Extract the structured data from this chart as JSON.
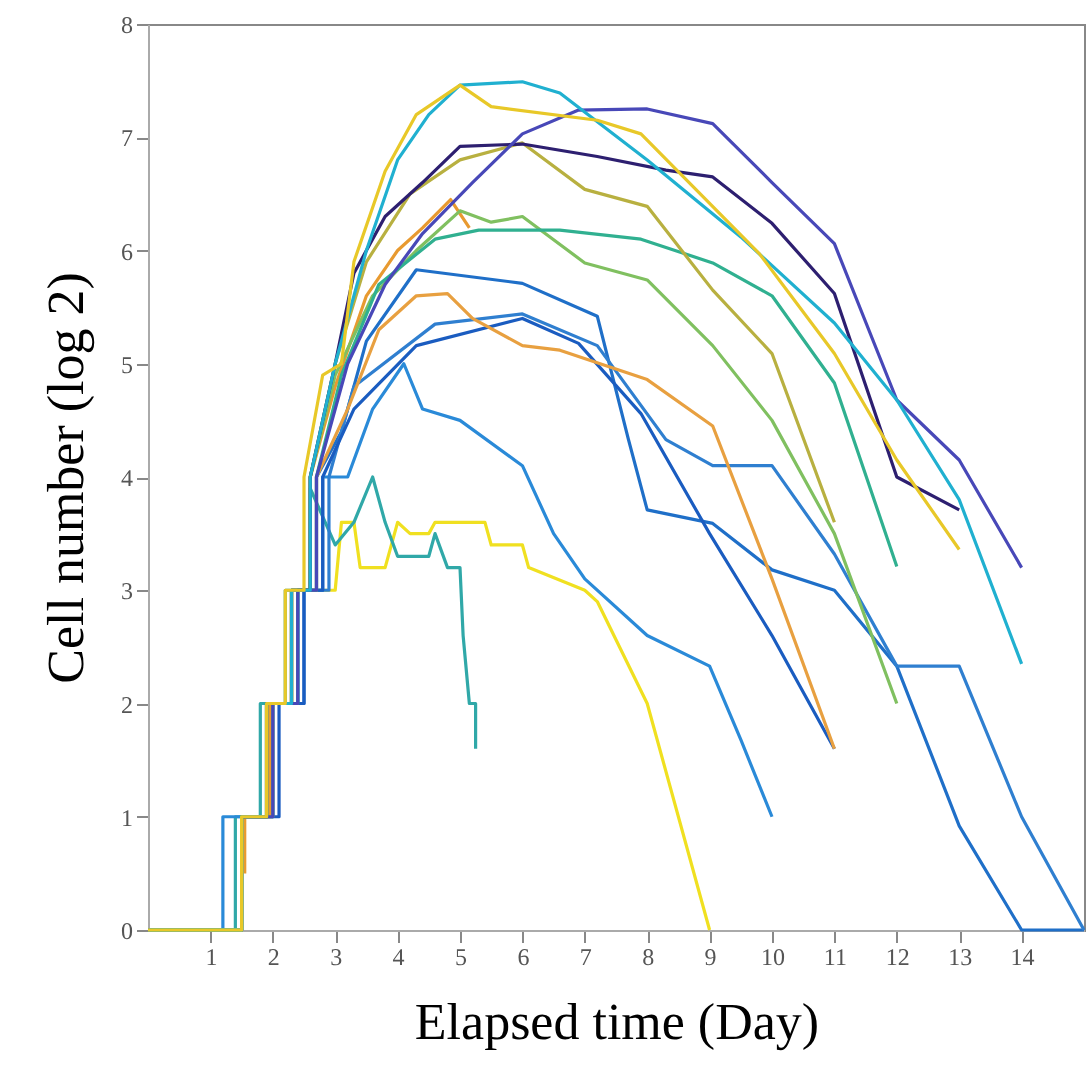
{
  "chart_data": {
    "type": "line",
    "xlabel": "Elapsed time (Day)",
    "ylabel": "Cell number (log 2)",
    "xlim": [
      0,
      15
    ],
    "xticks": [
      1,
      2,
      3,
      4,
      5,
      6,
      7,
      8,
      9,
      10,
      11,
      12,
      13,
      14
    ],
    "ylim": [
      0,
      8
    ],
    "yticks": [
      0,
      1,
      2,
      3,
      4,
      5,
      6,
      7,
      8
    ],
    "series": [
      {
        "color": "#f0e020",
        "x": [
          0,
          1.5,
          1.5,
          1.9,
          1.9,
          2.3,
          2.3,
          3.0,
          3.1,
          3.3,
          3.4,
          3.8,
          4.0,
          4.2,
          4.5,
          4.6,
          5.4,
          5.5,
          6.0,
          6.1,
          7.0,
          7.2,
          8.0,
          9.0
        ],
        "values": [
          0,
          0,
          1,
          1,
          2,
          2,
          3,
          3,
          3.6,
          3.6,
          3.2,
          3.2,
          3.6,
          3.5,
          3.5,
          3.6,
          3.6,
          3.4,
          3.4,
          3.2,
          3.0,
          2.9,
          2.0,
          0
        ]
      },
      {
        "color": "#30a8a8",
        "x": [
          0,
          1.4,
          1.4,
          1.8,
          1.8,
          2.2,
          2.2,
          2.6,
          2.6,
          3.0,
          3.3,
          3.6,
          3.8,
          4.0,
          4.5,
          4.6,
          4.8,
          5.0,
          5.05,
          5.15,
          5.25,
          5.25
        ],
        "values": [
          0,
          0,
          1,
          1,
          2,
          2,
          3,
          3,
          3.9,
          3.4,
          3.6,
          4.0,
          3.6,
          3.3,
          3.3,
          3.5,
          3.2,
          3.2,
          2.6,
          2.0,
          2.0,
          1.6
        ]
      },
      {
        "color": "#2a8ad8",
        "x": [
          0,
          1.2,
          1.2,
          2.0,
          2.0,
          2.4,
          2.4,
          2.8,
          2.8,
          3.2,
          3.6,
          4.1,
          4.4,
          5.0,
          6.0,
          6.5,
          7.0,
          8.0,
          9.0,
          9.5,
          10.0
        ],
        "values": [
          0,
          0,
          1,
          1,
          2,
          2,
          3,
          3,
          4,
          4,
          4.6,
          5.0,
          4.6,
          4.5,
          4.1,
          3.5,
          3.1,
          2.6,
          2.33,
          1.68,
          1.0
        ]
      },
      {
        "color": "#1f6fc8",
        "x": [
          0,
          1.5,
          1.5,
          1.9,
          1.9,
          2.4,
          2.4,
          2.7,
          2.7,
          3.1,
          3.5,
          4.3,
          6.0,
          7.2,
          7.7,
          8.0,
          9.05,
          10.0,
          11.0,
          12.0,
          13.0,
          14.0,
          15.0
        ],
        "values": [
          0,
          0,
          1,
          1,
          2,
          2,
          3,
          3,
          4,
          4.4,
          5.2,
          5.83,
          5.71,
          5.42,
          4.33,
          3.71,
          3.59,
          3.18,
          3.0,
          2.33,
          0.92,
          0,
          0
        ]
      },
      {
        "color": "#2f7fd0",
        "x": [
          0,
          1.5,
          1.5,
          2.0,
          2.0,
          2.5,
          2.5,
          2.9,
          2.9,
          3.3,
          4.6,
          6.0,
          7.2,
          8.3,
          9.05,
          10.0,
          11.0,
          12.0,
          13.0,
          14.0,
          15.0
        ],
        "values": [
          0,
          0,
          1,
          1,
          2,
          2,
          3,
          3,
          4,
          4.8,
          5.35,
          5.44,
          5.16,
          4.33,
          4.1,
          4.1,
          3.32,
          2.33,
          2.33,
          1.0,
          0
        ]
      },
      {
        "color": "#1a5cc0",
        "x": [
          0,
          1.5,
          1.5,
          2.1,
          2.1,
          2.5,
          2.5,
          2.8,
          2.8,
          3.3,
          4.3,
          6.0,
          6.9,
          7.9,
          9.0,
          10.0,
          11.0
        ],
        "values": [
          0,
          0,
          1,
          1,
          2,
          2,
          3,
          3,
          4,
          4.6,
          5.16,
          5.4,
          5.18,
          4.56,
          3.5,
          2.6,
          1.6
        ]
      },
      {
        "color": "#e8a040",
        "x": [
          0,
          1.5,
          1.5,
          1.9,
          1.9,
          2.3,
          2.3,
          2.7,
          2.7,
          3.2,
          3.7,
          4.3,
          4.8,
          5.2,
          6.0,
          6.6,
          8.0,
          9.05,
          10.0,
          11.0
        ],
        "values": [
          0,
          0,
          1,
          1,
          2,
          2,
          3,
          3,
          4,
          4.6,
          5.3,
          5.6,
          5.62,
          5.4,
          5.16,
          5.12,
          4.86,
          4.45,
          3.1,
          1.6
        ]
      },
      {
        "color": "#e89a30",
        "x": [
          1.55,
          1.55,
          1.95,
          1.95,
          2.3,
          2.3,
          2.6,
          2.6,
          3.0,
          3.5,
          4.0,
          4.4,
          4.85,
          5.15
        ],
        "values": [
          0.5,
          1,
          1,
          2,
          2,
          3,
          3,
          4,
          4.8,
          5.6,
          6.0,
          6.2,
          6.45,
          6.2
        ]
      },
      {
        "color": "#80c060",
        "x": [
          0,
          1.5,
          1.5,
          2.0,
          2.0,
          2.3,
          2.3,
          2.6,
          2.6,
          3.0,
          3.6,
          4.3,
          5.0,
          5.5,
          6.0,
          7.0,
          8.0,
          9.05,
          10.0,
          11.0,
          12.0
        ],
        "values": [
          0,
          0,
          1,
          1,
          2,
          2,
          3,
          3,
          4,
          4.9,
          5.6,
          6.0,
          6.35,
          6.25,
          6.3,
          5.89,
          5.74,
          5.16,
          4.5,
          3.5,
          2.0
        ]
      },
      {
        "color": "#30b090",
        "x": [
          0,
          1.5,
          1.5,
          1.9,
          1.9,
          2.4,
          2.4,
          2.7,
          2.7,
          3.1,
          3.7,
          4.6,
          5.3,
          6.6,
          7.9,
          9.05,
          10.0,
          11.0,
          12.0
        ],
        "values": [
          0,
          0,
          1,
          1,
          2,
          2,
          3,
          3,
          4,
          4.9,
          5.7,
          6.1,
          6.18,
          6.18,
          6.1,
          5.89,
          5.6,
          4.83,
          3.21
        ]
      },
      {
        "color": "#b8b040",
        "x": [
          0,
          1.5,
          1.5,
          1.9,
          1.9,
          2.3,
          2.3,
          2.6,
          2.6,
          3.0,
          3.5,
          4.2,
          5.0,
          6.0,
          7.0,
          8.0,
          9.05,
          10.0,
          11.0
        ],
        "values": [
          0,
          0,
          1,
          1,
          2,
          2,
          3,
          3,
          4,
          5.0,
          5.9,
          6.5,
          6.8,
          6.95,
          6.54,
          6.39,
          5.65,
          5.09,
          3.6
        ]
      },
      {
        "color": "#2d1f70",
        "x": [
          1.5,
          1.9,
          1.9,
          2.3,
          2.3,
          2.6,
          2.6,
          3.0,
          3.3,
          3.8,
          4.4,
          5.0,
          6.0,
          7.2,
          8.3,
          9.05,
          10.0,
          11.0,
          12.0,
          13.0
        ],
        "values": [
          1,
          1,
          2,
          2,
          3,
          3,
          4,
          5.0,
          5.8,
          6.3,
          6.6,
          6.92,
          6.94,
          6.83,
          6.71,
          6.65,
          6.24,
          5.62,
          4.0,
          3.71
        ]
      },
      {
        "color": "#4848b8",
        "x": [
          1.5,
          2.0,
          2.0,
          2.4,
          2.4,
          2.7,
          2.7,
          3.2,
          3.8,
          4.4,
          5.2,
          6.0,
          6.9,
          8.0,
          9.05,
          10.0,
          11.0,
          12.0,
          13.0,
          14.0
        ],
        "values": [
          1,
          1,
          2,
          2,
          3,
          3,
          4,
          5.0,
          5.7,
          6.15,
          6.6,
          7.03,
          7.24,
          7.25,
          7.12,
          6.6,
          6.06,
          4.68,
          4.15,
          3.2
        ]
      },
      {
        "color": "#20b0d0",
        "x": [
          0,
          1.5,
          1.5,
          1.9,
          1.9,
          2.3,
          2.3,
          2.6,
          2.6,
          3.0,
          3.5,
          4.0,
          4.5,
          5.0,
          6.0,
          6.6,
          8.0,
          9.5,
          11.0,
          12.0,
          13.0,
          14.0
        ],
        "values": [
          0,
          0,
          1,
          1,
          2,
          2,
          3,
          3,
          4,
          5.0,
          6.0,
          6.8,
          7.2,
          7.46,
          7.49,
          7.39,
          6.8,
          6.12,
          5.36,
          4.68,
          3.8,
          2.35
        ]
      },
      {
        "color": "#e8c828",
        "x": [
          0,
          1.5,
          1.5,
          1.9,
          1.9,
          2.2,
          2.2,
          2.5,
          2.5,
          2.8,
          3.1,
          3.3,
          3.8,
          4.3,
          5.0,
          5.5,
          7.2,
          7.9,
          9.8,
          11.0,
          12.0,
          13.0
        ],
        "values": [
          0,
          0,
          1,
          1,
          2,
          2,
          3,
          3,
          4,
          4.9,
          5.0,
          5.9,
          6.7,
          7.2,
          7.46,
          7.27,
          7.15,
          7.03,
          5.97,
          5.09,
          4.15,
          3.36
        ]
      }
    ]
  }
}
